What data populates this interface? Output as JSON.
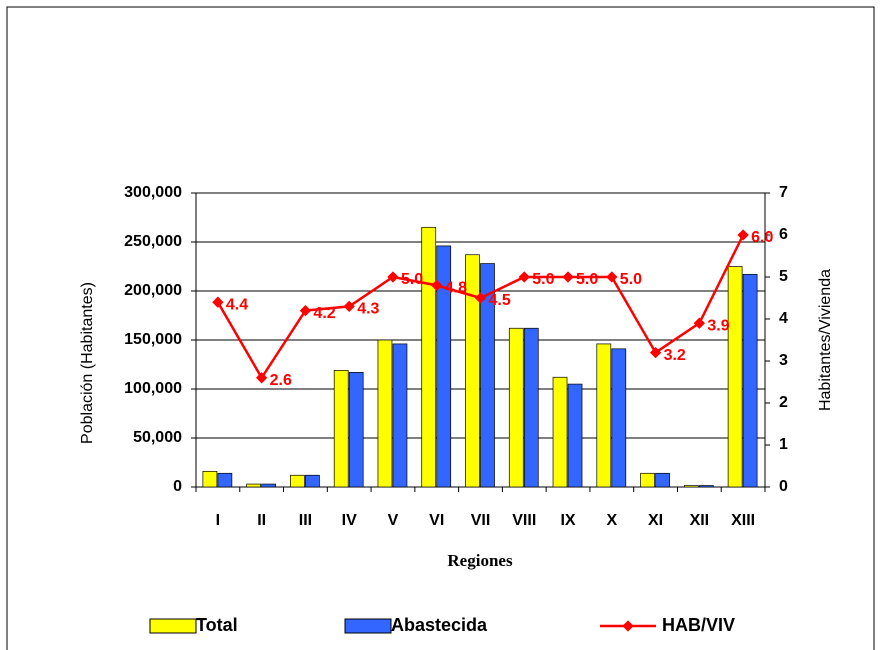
{
  "chart_data": {
    "type": "bar_line",
    "x_label": "Regiones",
    "y_label": "Población (Habitantes)",
    "y2_label": "Habitantes/Vivienda",
    "categories": [
      "I",
      "II",
      "III",
      "IV",
      "V",
      "VI",
      "VII",
      "VIII",
      "IX",
      "X",
      "XI",
      "XII",
      "XIII"
    ],
    "series": [
      {
        "name": "Total",
        "type": "bar",
        "color": "#ffff00",
        "values": [
          16000,
          3000,
          12000,
          119000,
          150000,
          265000,
          237000,
          162000,
          112000,
          146000,
          14000,
          1500,
          225000
        ]
      },
      {
        "name": "Abastecida",
        "type": "bar",
        "color": "#3366ff",
        "values": [
          14000,
          3000,
          12000,
          117000,
          146000,
          246000,
          228000,
          162000,
          105000,
          141000,
          14000,
          1500,
          217000
        ]
      },
      {
        "name": "HAB/VIV",
        "type": "line",
        "axis": "y2",
        "color": "#ff0000",
        "values": [
          4.4,
          2.6,
          4.2,
          4.3,
          5.0,
          4.8,
          4.5,
          5.0,
          5.0,
          5.0,
          3.2,
          3.9,
          6.0
        ],
        "value_labels": [
          "4.4",
          "2.6",
          "4.2",
          "4.3",
          "5.0",
          "4.8",
          "4.5",
          "5.0",
          "5.0",
          "5.0",
          "3.2",
          "3.9",
          "6.0"
        ]
      }
    ],
    "ylim": [
      0,
      300000
    ],
    "yticks": [
      0,
      {
        "value": 50000,
        "label": "50,000"
      },
      {
        "value": 100000,
        "label": "100,000"
      },
      {
        "value": 150000,
        "label": "150,000"
      },
      {
        "value": 200000,
        "label": "200,000"
      },
      {
        "value": 250000,
        "label": "250,000"
      },
      {
        "value": 300000,
        "label": "300,000"
      }
    ],
    "y2lim": [
      0,
      7
    ],
    "y2ticks": [
      0,
      1,
      2,
      3,
      4,
      5,
      6,
      7
    ],
    "grid": true
  }
}
